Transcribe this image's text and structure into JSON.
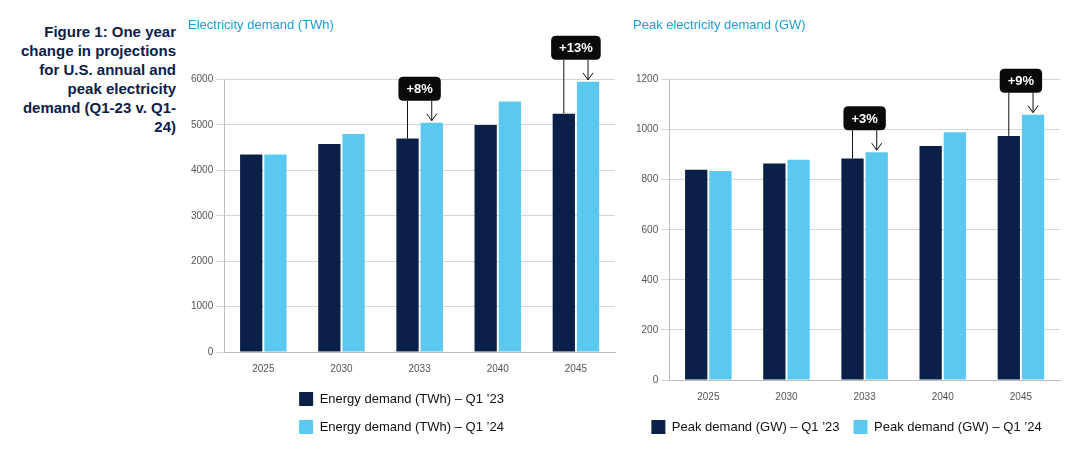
{
  "caption": "Figure 1: One year change in projections for U.S. annual and peak electricity demand (Q1-23 v. Q1-24)",
  "chart_data": [
    {
      "type": "bar",
      "title": "Electricity demand (TWh)",
      "categories": [
        "2025",
        "2030",
        "2033",
        "2040",
        "2045"
      ],
      "series": [
        {
          "name": "Energy demand (TWh) – Q1 ’23",
          "color": "#0b2048",
          "values": [
            4350,
            4580,
            4700,
            5000,
            5250
          ]
        },
        {
          "name": "Energy demand (TWh) – Q1 ’24",
          "color": "#5bc8f0",
          "values": [
            4350,
            4800,
            5050,
            5520,
            5950
          ]
        }
      ],
      "ylim": [
        0,
        6000
      ],
      "yticks": [
        0,
        1000,
        2000,
        3000,
        4000,
        5000,
        6000
      ],
      "grid": true,
      "legend": "bottom",
      "annotations": [
        {
          "category": "2033",
          "text": "+8%"
        },
        {
          "category": "2045",
          "text": "+13%"
        }
      ]
    },
    {
      "type": "bar",
      "title": "Peak electricity demand (GW)",
      "categories": [
        "2025",
        "2030",
        "2033",
        "2040",
        "2045"
      ],
      "series": [
        {
          "name": "Peak demand (GW) – Q1 ’23",
          "color": "#0b2048",
          "values": [
            840,
            865,
            885,
            935,
            975
          ]
        },
        {
          "name": "Peak demand (GW) – Q1 ’24",
          "color": "#5bc8f0",
          "values": [
            835,
            880,
            910,
            990,
            1060
          ]
        }
      ],
      "ylim": [
        0,
        1200
      ],
      "yticks": [
        0,
        200,
        400,
        600,
        800,
        1000,
        1200
      ],
      "grid": true,
      "legend": "bottom",
      "annotations": [
        {
          "category": "2033",
          "text": "+3%"
        },
        {
          "category": "2045",
          "text": "+9%"
        }
      ]
    }
  ]
}
